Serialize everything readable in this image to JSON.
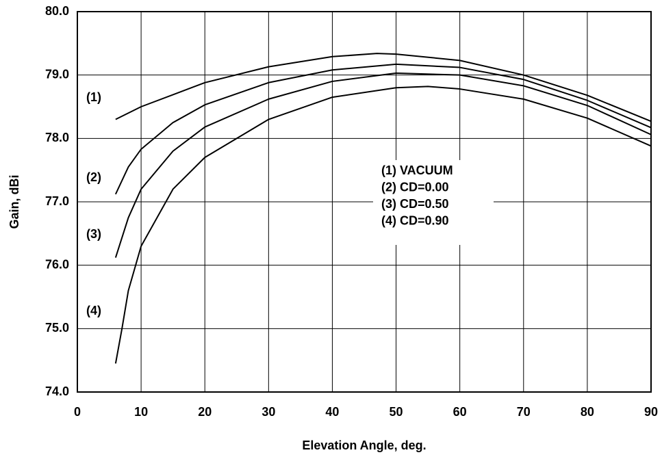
{
  "chart_data": {
    "type": "line",
    "xlabel": "Elevation Angle, deg.",
    "ylabel": "Gain, dBi",
    "series": [
      {
        "name": "(1) VACUUM",
        "color": "#000000",
        "x": [
          6,
          10,
          20,
          30,
          40,
          47,
          50,
          60,
          70,
          80,
          90
        ],
        "values": [
          78.3,
          78.5,
          78.88,
          79.13,
          79.29,
          79.34,
          79.33,
          79.23,
          79.0,
          78.68,
          78.27
        ]
      },
      {
        "name": "(2) CD=0.00",
        "color": "#000000",
        "x": [
          6,
          8,
          10,
          15,
          20,
          30,
          40,
          50,
          60,
          70,
          80,
          90
        ],
        "values": [
          77.12,
          77.55,
          77.83,
          78.25,
          78.53,
          78.88,
          79.08,
          79.17,
          79.12,
          78.93,
          78.6,
          78.17
        ]
      },
      {
        "name": "(3) CD=0.50",
        "color": "#000000",
        "x": [
          6,
          8,
          10,
          15,
          20,
          30,
          40,
          50,
          60,
          70,
          80,
          90
        ],
        "values": [
          76.12,
          76.75,
          77.2,
          77.8,
          78.18,
          78.62,
          78.9,
          79.03,
          79.0,
          78.83,
          78.52,
          78.06
        ]
      },
      {
        "name": "(4) CD=0.90",
        "color": "#000000",
        "x": [
          6,
          7,
          8,
          10,
          15,
          20,
          30,
          40,
          50,
          55,
          60,
          70,
          80,
          90
        ],
        "values": [
          74.45,
          75.0,
          75.6,
          76.3,
          77.2,
          77.7,
          78.3,
          78.65,
          78.8,
          78.82,
          78.78,
          78.62,
          78.32,
          77.88
        ]
      }
    ],
    "annotations": [
      "(1)",
      "(2)",
      "(3)",
      "(4)"
    ],
    "xlim": [
      0,
      90
    ],
    "xticks": [
      0,
      10,
      20,
      30,
      40,
      50,
      60,
      70,
      80,
      90
    ],
    "ylim": [
      74,
      80
    ],
    "yticks": [
      {
        "value": 74,
        "label": "74.0"
      },
      {
        "value": 75,
        "label": "75.0"
      },
      {
        "value": 76,
        "label": "76.0"
      },
      {
        "value": 77,
        "label": "77.0"
      },
      {
        "value": 78,
        "label": "78.0"
      },
      {
        "value": 79,
        "label": "79.0"
      },
      {
        "value": 80,
        "label": "80.0"
      }
    ],
    "grid": true
  }
}
